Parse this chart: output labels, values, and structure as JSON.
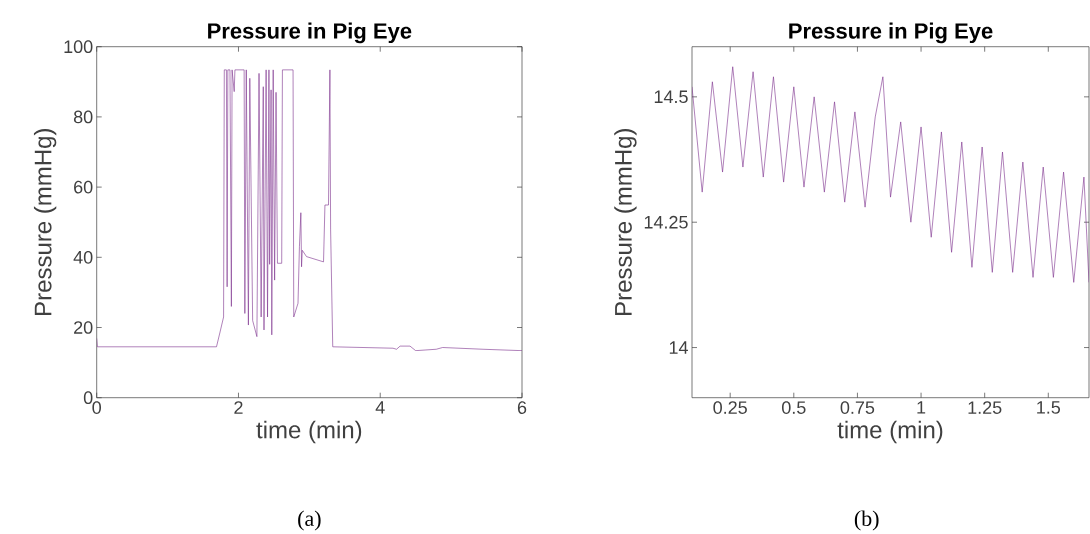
{
  "chart_data": [
    {
      "type": "line",
      "title": "Pressure in Pig Eye",
      "xlabel": "time (min)",
      "ylabel": "Pressure (mmHg)",
      "color": "#7b2d8b",
      "xlim": [
        0,
        6
      ],
      "ylim": [
        0,
        100
      ],
      "xticks": [
        0,
        2,
        4,
        6
      ],
      "yticks": [
        0,
        20,
        40,
        60,
        80,
        100
      ],
      "annotations": [
        "(a)"
      ],
      "x": [
        0,
        0.01,
        1.69,
        1.74,
        1.79,
        1.8,
        1.83,
        1.84,
        1.85,
        1.88,
        1.9,
        1.91,
        1.94,
        1.95,
        2.08,
        2.09,
        2.11,
        2.14,
        2.16,
        2.2,
        2.26,
        2.29,
        2.32,
        2.35,
        2.36,
        2.39,
        2.41,
        2.43,
        2.44,
        2.46,
        2.47,
        2.49,
        2.51,
        2.53,
        2.55,
        2.61,
        2.62,
        2.77,
        2.78,
        2.84,
        2.86,
        2.88,
        2.89,
        2.9,
        2.96,
        3.2,
        3.22,
        3.27,
        3.29,
        3.3,
        3.33,
        4.18,
        4.23,
        4.28,
        4.42,
        4.5,
        4.79,
        4.88,
        5.45,
        6
      ],
      "values": [
        16.9,
        14.5,
        14.5,
        18.7,
        23,
        93.4,
        93.4,
        31.6,
        93.4,
        93.4,
        26,
        93.4,
        87.2,
        93.4,
        93.4,
        24,
        93.4,
        20.7,
        91,
        22,
        17.4,
        92.4,
        23,
        88.6,
        19.3,
        93.4,
        23,
        93.4,
        38,
        87.7,
        17.9,
        93.4,
        33.5,
        87,
        38.3,
        38.3,
        93.4,
        93.4,
        23,
        26.9,
        43,
        52.7,
        37.3,
        42,
        40.2,
        38.7,
        54.9,
        54.9,
        93.4,
        47.8,
        14.5,
        14.1,
        13.8,
        14.7,
        14.7,
        13.4,
        13.8,
        14.3,
        13.8,
        13.4
      ]
    },
    {
      "type": "line",
      "title": "Pressure in Pig Eye",
      "xlabel": "time (min)",
      "ylabel": "Pressure (mmHg)",
      "color": "#7b2d8b",
      "xlim": [
        0.1,
        1.66
      ],
      "ylim": [
        13.9,
        14.6
      ],
      "xticks": [
        0.25,
        0.5,
        0.75,
        1,
        1.25,
        1.5
      ],
      "yticks": [
        14,
        14.25,
        14.5
      ],
      "annotations": [
        "(b)"
      ],
      "x": [
        0.1,
        0.14,
        0.18,
        0.22,
        0.26,
        0.3,
        0.34,
        0.38,
        0.42,
        0.46,
        0.5,
        0.54,
        0.58,
        0.62,
        0.66,
        0.7,
        0.74,
        0.78,
        0.82,
        0.85,
        0.88,
        0.92,
        0.96,
        1.0,
        1.04,
        1.08,
        1.12,
        1.16,
        1.2,
        1.24,
        1.28,
        1.32,
        1.36,
        1.4,
        1.44,
        1.48,
        1.52,
        1.56,
        1.6,
        1.64,
        1.66
      ],
      "values": [
        14.52,
        14.31,
        14.53,
        14.35,
        14.56,
        14.36,
        14.55,
        14.34,
        14.54,
        14.33,
        14.52,
        14.32,
        14.5,
        14.31,
        14.49,
        14.29,
        14.47,
        14.28,
        14.46,
        14.54,
        14.3,
        14.45,
        14.25,
        14.44,
        14.22,
        14.43,
        14.19,
        14.41,
        14.16,
        14.4,
        14.15,
        14.39,
        14.15,
        14.37,
        14.14,
        14.36,
        14.14,
        14.35,
        14.13,
        14.34,
        14.13
      ]
    }
  ]
}
